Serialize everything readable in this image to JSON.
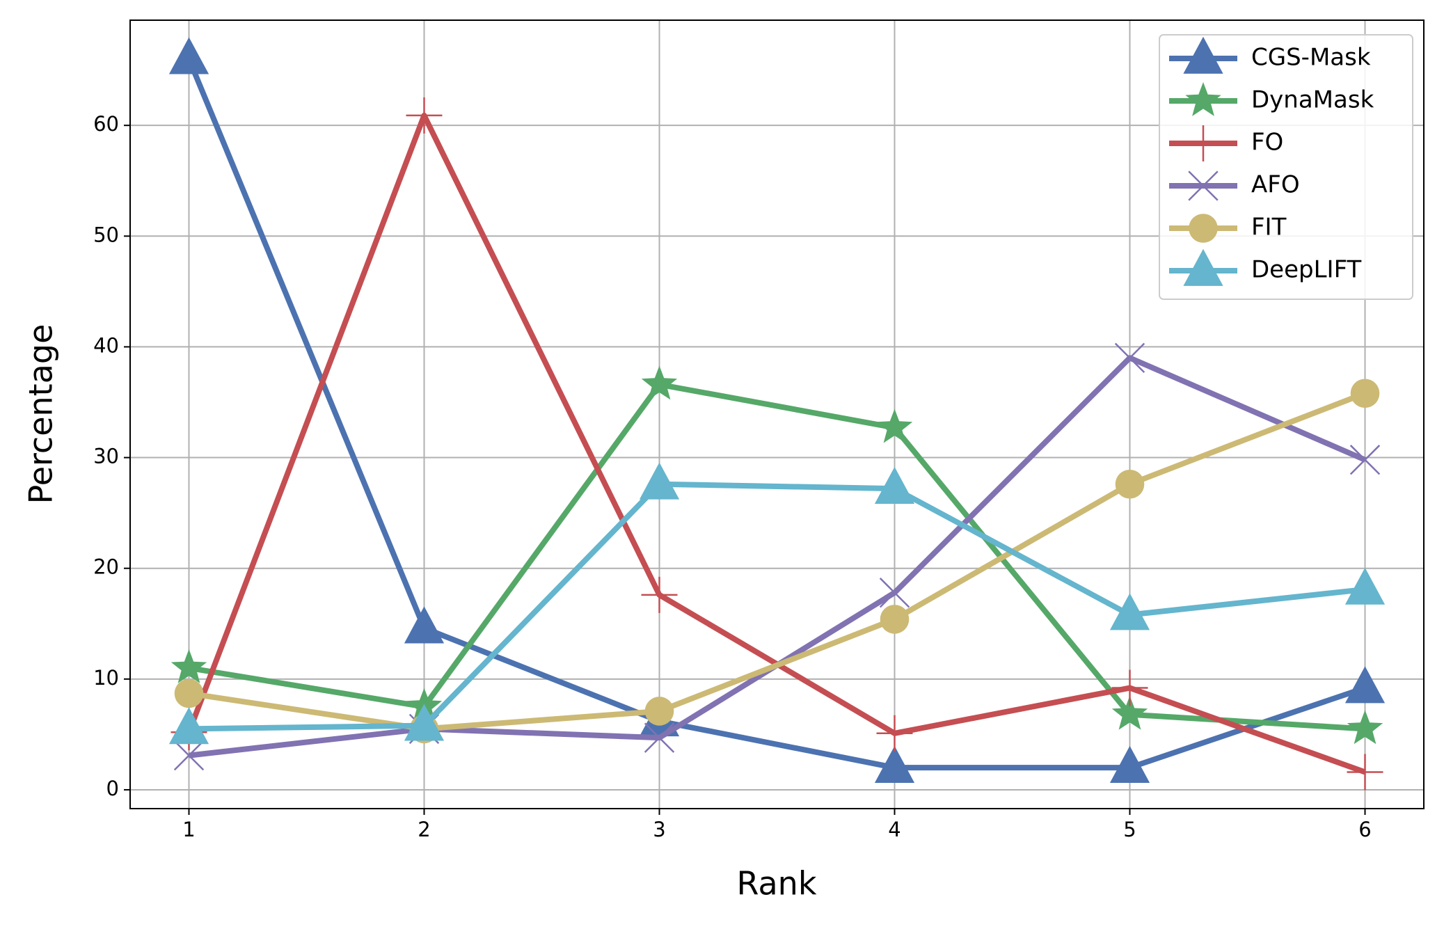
{
  "chart_data": {
    "type": "line",
    "x_label": "Rank",
    "y_label": "Percentage",
    "x": [
      1,
      2,
      3,
      4,
      5,
      6
    ],
    "xlim": [
      0.75,
      6.25
    ],
    "xticks": [
      1,
      2,
      3,
      4,
      5,
      6
    ],
    "ylim": [
      -1.7,
      69.5
    ],
    "yticks": [
      0,
      10,
      20,
      30,
      40,
      50,
      60
    ],
    "grid": true,
    "legend": "upper right",
    "series": [
      {
        "name": "CGS-Mask",
        "color": "#4c72b0",
        "marker": "triangle",
        "values": [
          66,
          14.6,
          6.2,
          2,
          2,
          9.2
        ]
      },
      {
        "name": "DynaMask",
        "color": "#55a868",
        "marker": "star",
        "values": [
          11,
          7.5,
          36.6,
          32.7,
          6.8,
          5.5
        ]
      },
      {
        "name": "FO",
        "color": "#c44e52",
        "marker": "plus",
        "values": [
          5.2,
          60.9,
          17.6,
          5.1,
          9.2,
          1.6
        ]
      },
      {
        "name": "AFO",
        "color": "#8172b2",
        "marker": "x",
        "values": [
          3.1,
          5.5,
          4.7,
          17.8,
          39,
          29.8
        ]
      },
      {
        "name": "FIT",
        "color": "#ccb974",
        "marker": "circle",
        "values": [
          8.7,
          5.5,
          7.1,
          15.4,
          27.6,
          35.8
        ]
      },
      {
        "name": "DeepLIFT",
        "color": "#64b5cd",
        "marker": "triangle",
        "values": [
          5.5,
          5.8,
          27.6,
          27.2,
          15.8,
          18.1
        ]
      }
    ]
  }
}
